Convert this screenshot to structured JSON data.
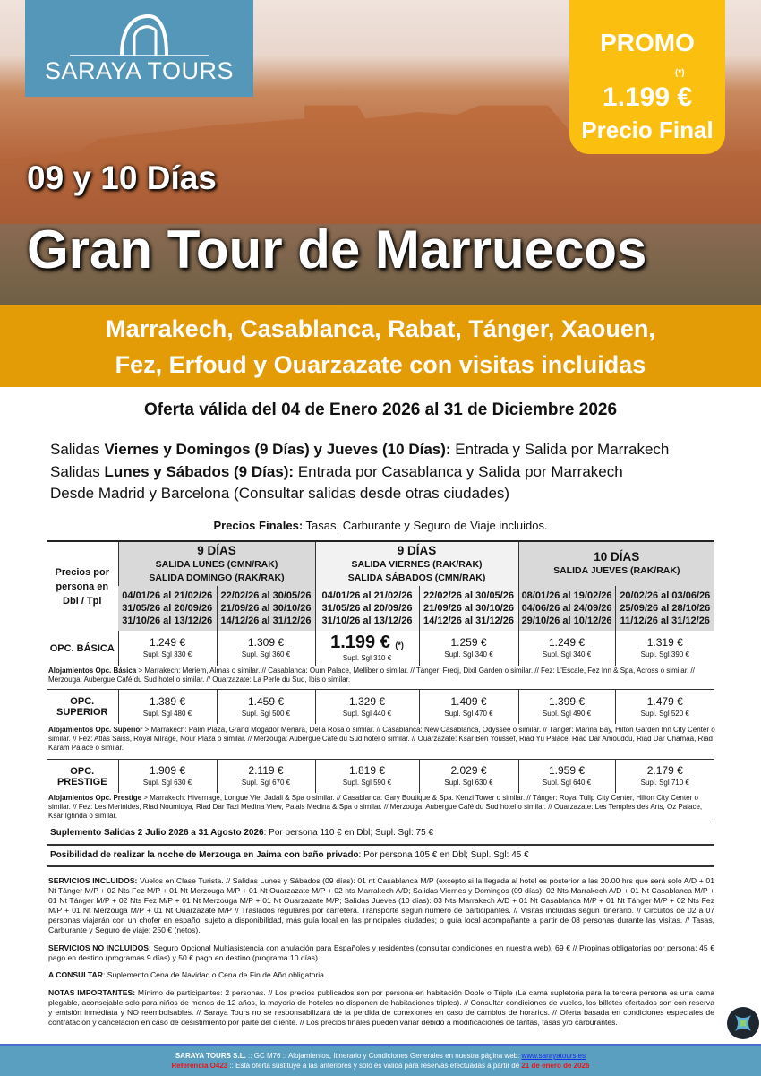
{
  "logo": {
    "name": "SARAYA TOURS"
  },
  "promo": {
    "label": "PROMO",
    "asterisk": "(*)",
    "price": "1.199 €",
    "final": "Precio Final"
  },
  "hero": {
    "days": "09 y 10 Días",
    "title": "Gran Tour de Marruecos"
  },
  "band": {
    "line1": "Marrakech, Casablanca, Rabat, Tánger, Xaouen,",
    "line2": "Fez, Erfoud y Ouarzazate con visitas incluidas"
  },
  "offer": "Oferta válida del 04 de Enero 2026 al 31 de Diciembre 2026",
  "salidas": [
    {
      "pre": "Salidas ",
      "bold": "Viernes y Domingos (9 Días) y Jueves (10 Días):",
      "post": " Entrada y Salida por Marrakech"
    },
    {
      "pre": "Salidas ",
      "bold": "Lunes y Sábados (9 Días):",
      "post": " Entrada por Casablanca y Salida por Marrakech"
    },
    {
      "pre": "Desde Madrid y Barcelona (Consultar salidas desde otras ciudades)",
      "bold": "",
      "post": ""
    }
  ],
  "precios_note": {
    "bold": "Precios Finales:",
    "text": " Tasas, Carburante y Seguro de Viaje incluidos."
  },
  "table": {
    "corner": "Precios por persona en Dbl / Tpl",
    "groups": [
      {
        "days": "9 DÍAS",
        "sub1": "SALIDA LUNES (CMN/RAK)",
        "sub2": "SALIDA DOMINGO (RAK/RAK)"
      },
      {
        "days": "9 DÍAS",
        "sub1": "SALIDA VIERNES (RAK/RAK)",
        "sub2": "SALIDA SÁBADOS (CMN/RAK)"
      },
      {
        "days": "10 DÍAS",
        "sub1": "SALIDA JUEVES (RAK/RAK)",
        "sub2": ""
      }
    ],
    "periods": [
      [
        "04/01/26 al 21/02/26",
        "31/05/26 al 20/09/26",
        "31/10/26 al 13/12/26"
      ],
      [
        "22/02/26 al 30/05/26",
        "21/09/26 al 30/10/26",
        "14/12/26 al 31/12/26"
      ],
      [
        "04/01/26 al 21/02/26",
        "31/05/26 al 20/09/26",
        "31/10/26 al 13/12/26"
      ],
      [
        "22/02/26 al 30/05/26",
        "21/09/26 al 30/10/26",
        "14/12/26 al 31/12/26"
      ],
      [
        "08/01/26 al 19/02/26",
        "04/06/26 al 24/09/26",
        "29/10/26 al 10/12/26"
      ],
      [
        "20/02/26 al 03/06/26",
        "25/09/26 al 28/10/26",
        "11/12/26 al 31/12/26"
      ]
    ],
    "options": [
      {
        "label": "OPC. BÁSICA",
        "prices": [
          [
            "1.249 €",
            "Supl. Sgl 330 €"
          ],
          [
            "1.309 €",
            "Supl. Sgl 360 €"
          ],
          [
            "1.199 €",
            "Supl. Sgl 310 €"
          ],
          [
            "1.259 €",
            "Supl. Sgl 340 €"
          ],
          [
            "1.249 €",
            "Supl. Sgl 340 €"
          ],
          [
            "1.319 €",
            "Supl. Sgl 390 €"
          ]
        ],
        "highlight_mark": "(*)",
        "aloj_bold": "Alojamientos Opc. Básica",
        "aloj": " >  Marrakech: Meriem, Almas o similar. // Casablanca: Oum Palace, Melliber o similar. // Tánger: Fredj, Dixil Garden o similar. // Fez: L'Escale, Fez Inn & Spa, Across o similar. // Merzouga: Aubergue Café du Sud hotel o similar. // Ouarzazate: La Perle du Sud, Ibis o similar."
      },
      {
        "label": "OPC. SUPERIOR",
        "prices": [
          [
            "1.389 €",
            "Supl. Sgl 480 €"
          ],
          [
            "1.459 €",
            "Supl. Sgl 500 €"
          ],
          [
            "1.329 €",
            "Supl. Sgl 440 €"
          ],
          [
            "1.409 €",
            "Supl. Sgl 470 €"
          ],
          [
            "1.399 €",
            "Supl. Sgl 490 €"
          ],
          [
            "1.479 €",
            "Supl. Sgl 520 €"
          ]
        ],
        "aloj_bold": "Alojamientos Opc. Superior",
        "aloj": " > Marrakech: Palm Plaza, Grand Mogador Menara, Della Rosa o similar. // Casablanca: New Casablanca, Odyssee o similar. // Tánger: Marina Bay, Hilton Garden Inn City Center o similar. // Fez: Atlas Saiss, Royal MIrage, Nour Plaza o similar. // Merzouga: Aubergue Café du Sud hotel o similar. // Ouarzazate: Ksar Ben Youssef, Riad Yu Palace, Riad Dar Amoudou, Riad Dar Chamaa, Riad Karam Palace o similar."
      },
      {
        "label": "OPC. PRESTIGE",
        "prices": [
          [
            "1.909 €",
            "Supl. Sgl 630 €"
          ],
          [
            "2.119 €",
            "Supl. Sgl 670 €"
          ],
          [
            "1.819 €",
            "Supl. Sgl 590 €"
          ],
          [
            "2.029 €",
            "Supl. Sgl 630 €"
          ],
          [
            "1.959 €",
            "Supl. Sgl 640 €"
          ],
          [
            "2.179 €",
            "Supl. Sgl 710 €"
          ]
        ],
        "aloj_bold": "Alojamientos Opc. Prestige",
        "aloj": " > Marrakech: Hivernage, Longue Vie, Jadali & Spa o similar. // Casablanca: Gary Boutique & Spa. Kenzi Tower o similar. // Tánger: Royal Tulip City Center, Hilton City Center o similar. // Fez: Les Merinides, Riad Noumidya, Riad Dar Tazi Medina View, Palais Medina & Spa o similar. // Merzouga: Aubergue Café du Sud hotel o similar.  // Ouarzazate: Les Temples des Arts, Oz Palace, Ksar Ighnda o similar."
      }
    ]
  },
  "suplemento": {
    "bold": "Suplemento Salidas 2 Julio 2026  a 31 Agosto 2026",
    "text": ": Por persona 110 € en Dbl;  Supl. Sgl: 75 €"
  },
  "jaima": {
    "bold": "Posibilidad de realizar la noche de Merzouga en Jaima con baño privado",
    "text": ": Por persona 105 € en Dbl; Supl. Sgl: 45 €"
  },
  "servicios_incluidos": {
    "bold": "SERVICIOS INCLUIDOS:",
    "text": " Vuelos en Clase Turista. // Salidas Lunes y Sábados (09 días): 01 nt Casablanca M/P (excepto si la llegada al hotel es posterior a las 20.00 hrs que será solo A/D + 01 Nt Tánger M/P + 02 Nts Fez M/P + 01 Nt Merzouga M/P + 01 Nt Ouarzazate M/P + 02 nts Marrakech A/D; Salidas Viernes  y Domingos (09 días): 02 Nts Marrakech A/D + 01 Nt Casablanca M/P + 01 Nt Tánger M/P + 02 Nts Fez M/P + 01 Nt Merzouga M/P + 01 Nt Ouarzazate M/P; Salidas Jueves (10 días): 03 Nts Marrakech A/D + 01 Nt Casablanca M/P + 01 Nt Tánger M/P + 02 Nts Fez M/P + 01 Nt Merzouga M/P + 01 Nt Ouarzazate M/P // Traslados regulares por carretera. Transporte según numero de participantes. // Visitas incluidas según itinerario. // Circuitos de 02 a 07 personas viajarán con un chofer en español sujeto a disponibilidad, más guía local en las principales ciudades; o guía local acompañante a partir de 08 personas durante las visitas. // Tasas, Carburante y Seguro de viaje: 250 € (netos)."
  },
  "servicios_no_incluidos": {
    "bold": "SERVICIOS NO INCLUIDOS:",
    "text": " Seguro Opcional Multiasistencia con anulación para Españoles y residentes (consultar condiciones en nuestra web): 69 € // Propinas obligatorias por persona: 45 € pago en destino (programas 9 días) y 50 € pago en destino (programa 10 días)."
  },
  "a_consultar": {
    "bold": "A CONSULTAR",
    "text": ": Suplemento Cena de Navidad o Cena de Fin de Año obligatoria."
  },
  "notas": {
    "bold": "NOTAS IMPORTANTES:",
    "text": " Mínimo de participantes: 2 personas. // Los precios publicados son por persona en habitación Doble o Triple (La cama supletoria para la tercera persona es una cama plegable, aconsejable solo para niños de menos de 12 años, la mayoria de hoteles no disponen de habitaciones triples). // Consultar condiciones de vuelos, los billetes ofertados son con reserva y emisión inmediata y NO reembolsables. // Saraya Tours no se responsabilizará de la perdida de conexiones en caso de cambios de horarios. // Oferta basada en condiciones especiales de contratación y cancelación en caso de desistimiento por parte del cliente. // Los precios finales pueden variar debido a modificaciones de tarifas, tasas y/o carburantes."
  },
  "footer": {
    "company": "SARAYA TOURS S.L.",
    "line1": " :: GC M76 ::  Alojamientos, Itinerario y Condiciones Generales en nuestra página web:  ",
    "web": "www.sarayatours.es",
    "ref": "Referencia O423",
    "line2": " :: Esta oferta sustituye a las anteriores y solo es válida para reservas efectuadas a partir de ",
    "date": "21 de enero de 2026"
  },
  "colors": {
    "logo_bg": "#5597b8",
    "promo_bg": "#fbbf10",
    "band_bg": "#e39b06",
    "footer_bg": "#5a9fc0",
    "footer_red": "#e8141a"
  }
}
